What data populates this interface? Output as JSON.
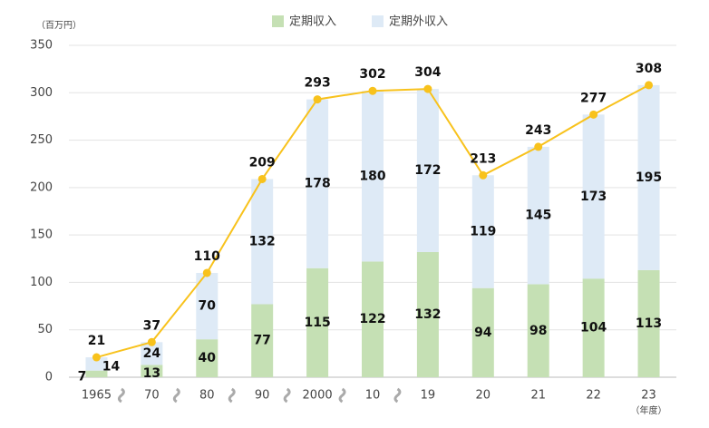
{
  "chart_data": {
    "type": "stacked-bar-line",
    "unit": "（百万円）",
    "x_note": "（年度）",
    "categories": [
      "1965",
      "70",
      "80",
      "90",
      "2000",
      "10",
      "19",
      "20",
      "21",
      "22",
      "23"
    ],
    "series": [
      {
        "name": "定期収入",
        "color": "#c5e0b4",
        "values": [
          7,
          13,
          40,
          77,
          115,
          122,
          132,
          94,
          98,
          104,
          113
        ]
      },
      {
        "name": "定期外収入",
        "color": "#deeaf6",
        "values": [
          14,
          24,
          70,
          132,
          178,
          180,
          172,
          119,
          145,
          173,
          195
        ]
      }
    ],
    "line": {
      "color": "#f8c21c",
      "values": [
        21,
        37,
        110,
        209,
        293,
        302,
        304,
        213,
        243,
        277,
        308
      ]
    },
    "ylim": [
      0,
      350
    ],
    "yticks": [
      0,
      50,
      100,
      150,
      200,
      250,
      300,
      350
    ],
    "grid": true,
    "legend": "top"
  }
}
